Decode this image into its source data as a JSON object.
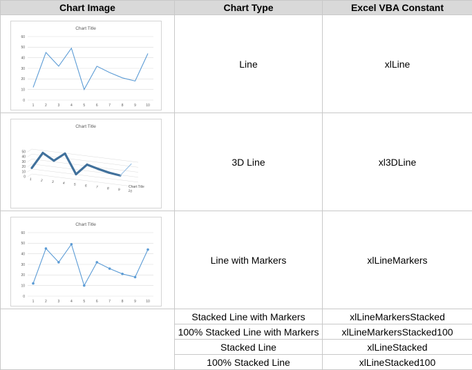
{
  "headers": {
    "chart_image": "Chart Image",
    "chart_type": "Chart Type",
    "vba_constant": "Excel VBA Constant"
  },
  "rows": [
    {
      "type": "Line",
      "constant": "xlLine"
    },
    {
      "type": "3D Line",
      "constant": "xl3DLine"
    },
    {
      "type": "Line with Markers",
      "constant": "xlLineMarkers"
    },
    {
      "type": "Stacked Line with Markers",
      "constant": "xlLineMarkersStacked"
    },
    {
      "type": "100% Stacked Line with Markers",
      "constant": "xlLineMarkersStacked100"
    },
    {
      "type": "Stacked Line",
      "constant": "xlLineStacked"
    },
    {
      "type": "100% Stacked Line",
      "constant": "xlLineStacked100"
    }
  ],
  "chart_data": [
    {
      "type": "line",
      "title": "Chart Title",
      "x": [
        1,
        2,
        3,
        4,
        5,
        6,
        7,
        8,
        9,
        10
      ],
      "series": [
        {
          "values": [
            12,
            45,
            32,
            49,
            10,
            32,
            26,
            21,
            18,
            44
          ]
        }
      ],
      "ylim": [
        0,
        60
      ],
      "yticks": [
        0,
        10,
        20,
        30,
        40,
        50,
        60
      ],
      "markers": false,
      "grid": true,
      "color": "#5b9bd5"
    },
    {
      "type": "line",
      "variant": "3d",
      "title": "Chart Title",
      "x": [
        1,
        2,
        3,
        4,
        5,
        6,
        7,
        8,
        9,
        10
      ],
      "series": [
        {
          "values": [
            12,
            45,
            32,
            49,
            10,
            32,
            26,
            21,
            18,
            44
          ]
        }
      ],
      "ylim": [
        0,
        50
      ],
      "yticks": [
        0,
        10,
        20,
        30,
        40,
        50
      ],
      "depth_axis_label": "Chart Title",
      "grid": true,
      "color": "#41719c"
    },
    {
      "type": "line",
      "title": "Chart Title",
      "x": [
        1,
        2,
        3,
        4,
        5,
        6,
        7,
        8,
        9,
        10
      ],
      "series": [
        {
          "values": [
            12,
            45,
            32,
            49,
            10,
            32,
            26,
            21,
            18,
            44
          ]
        }
      ],
      "ylim": [
        0,
        60
      ],
      "yticks": [
        0,
        10,
        20,
        30,
        40,
        50,
        60
      ],
      "markers": true,
      "grid": true,
      "color": "#5b9bd5"
    }
  ]
}
